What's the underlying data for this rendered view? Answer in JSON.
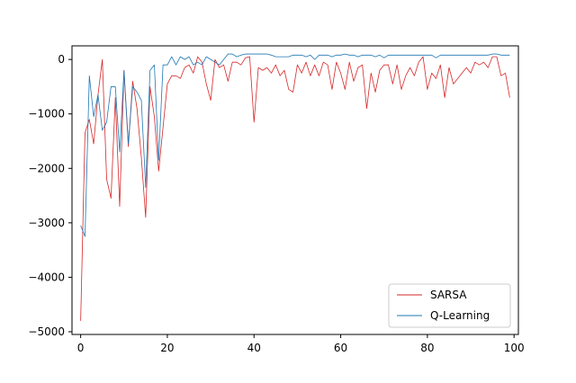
{
  "chart_data": {
    "type": "line",
    "title": "",
    "xlabel": "",
    "ylabel": "",
    "xlim": [
      -2,
      101
    ],
    "ylim": [
      -5050,
      250
    ],
    "xticks": [
      0,
      20,
      40,
      60,
      80,
      100
    ],
    "yticks": [
      0,
      -1000,
      -2000,
      -3000,
      -4000,
      -5000
    ],
    "xtick_labels": [
      "0",
      "20",
      "40",
      "60",
      "80",
      "100"
    ],
    "ytick_labels": [
      "0",
      "−1000",
      "−2000",
      "−3000",
      "−4000",
      "−5000"
    ],
    "grid": false,
    "legend_position": "lower-right",
    "series": [
      {
        "name": "SARSA",
        "color": "#d62728",
        "values": [
          -4800,
          -1350,
          -1100,
          -1550,
          -650,
          0,
          -2200,
          -2550,
          -700,
          -2700,
          -200,
          -1600,
          -400,
          -900,
          -1800,
          -2900,
          -500,
          -1050,
          -2050,
          -1250,
          -450,
          -300,
          -300,
          -350,
          -150,
          -100,
          -250,
          50,
          -50,
          -450,
          -750,
          0,
          -150,
          -100,
          -400,
          -50,
          -50,
          -100,
          30,
          50,
          -1150,
          -150,
          -200,
          -150,
          -250,
          -100,
          -300,
          -200,
          -550,
          -600,
          -100,
          -250,
          -50,
          -300,
          -100,
          -300,
          -50,
          -100,
          -550,
          -50,
          -250,
          -550,
          -50,
          -400,
          -150,
          -100,
          -900,
          -250,
          -600,
          -200,
          -100,
          -100,
          -450,
          -100,
          -550,
          -300,
          -150,
          -300,
          -50,
          50,
          -550,
          -250,
          -350,
          -100,
          -700,
          -150,
          -450,
          -350,
          -250,
          -150,
          -250,
          -50,
          -100,
          -50,
          -150,
          50,
          50,
          -300,
          -250,
          -700
        ]
      },
      {
        "name": "Q-Learning",
        "color": "#1f77b4",
        "values": [
          -3050,
          -3250,
          -300,
          -1050,
          -650,
          -1300,
          -1150,
          -500,
          -500,
          -1700,
          -200,
          -1550,
          -500,
          -600,
          -750,
          -2350,
          -200,
          -100,
          -1850,
          -100,
          -100,
          50,
          -100,
          50,
          0,
          50,
          -100,
          -50,
          -100,
          50,
          0,
          -50,
          -100,
          0,
          100,
          100,
          50,
          80,
          100,
          100,
          100,
          100,
          100,
          100,
          80,
          50,
          50,
          50,
          50,
          80,
          80,
          80,
          50,
          80,
          0,
          80,
          80,
          80,
          50,
          80,
          80,
          100,
          80,
          80,
          50,
          80,
          80,
          80,
          50,
          80,
          30,
          80,
          80,
          80,
          80,
          80,
          80,
          80,
          80,
          80,
          80,
          80,
          30,
          80,
          80,
          80,
          80,
          80,
          80,
          80,
          80,
          80,
          80,
          80,
          80,
          100,
          100,
          80,
          80,
          80
        ]
      }
    ]
  }
}
